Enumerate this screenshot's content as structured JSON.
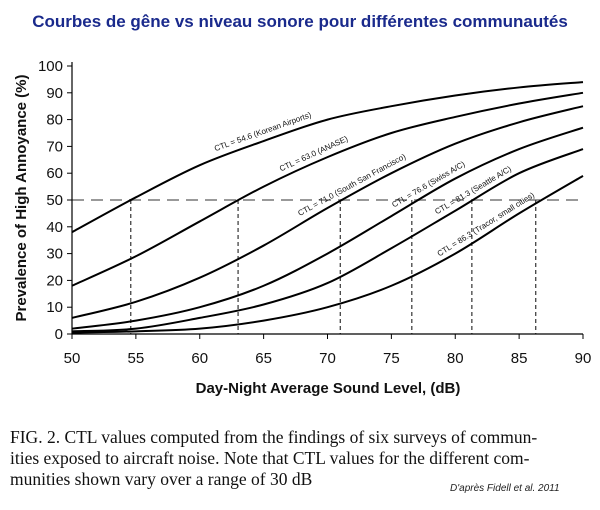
{
  "title": "Courbes de gêne vs niveau sonore pour différentes communautés",
  "caption": {
    "lines": [
      "FIG. 2.  CTL values computed from the findings of six surveys of commun-",
      "ities exposed to aircraft noise. Note that CTL values for the different com-",
      "munities shown vary over a range of 30 dB"
    ]
  },
  "source": "D'après Fidell et al. 2011",
  "chart_data": {
    "type": "line",
    "xlabel": "Day-Night Average Sound Level, (dB)",
    "ylabel": "Prevalence of High Annoyance (%)",
    "xlim": [
      50,
      90
    ],
    "ylim": [
      0,
      100
    ],
    "xticks": [
      50,
      55,
      60,
      65,
      70,
      75,
      80,
      85,
      90
    ],
    "yticks": [
      0,
      10,
      20,
      30,
      40,
      50,
      60,
      70,
      80,
      90,
      100
    ],
    "reference_line": {
      "y": 50,
      "style": "dashed"
    },
    "series": [
      {
        "name": "CTL = 54.6 (Korean Airports)",
        "ctl": 54.6,
        "x": [
          50,
          55,
          60,
          65,
          70,
          75,
          80,
          85,
          90
        ],
        "y": [
          38,
          51,
          63,
          72,
          80,
          85,
          89,
          92,
          94
        ]
      },
      {
        "name": "CTL = 63.0 (ANASE)",
        "ctl": 63.0,
        "x": [
          50,
          55,
          60,
          65,
          70,
          75,
          80,
          85,
          90
        ],
        "y": [
          18,
          29,
          42,
          55,
          66,
          75,
          81,
          86,
          90
        ]
      },
      {
        "name": "CTL = 71.0 (South San Francisco)",
        "ctl": 71.0,
        "x": [
          50,
          55,
          60,
          65,
          70,
          75,
          80,
          85,
          90
        ],
        "y": [
          6,
          12,
          21,
          33,
          47,
          60,
          71,
          79,
          85
        ]
      },
      {
        "name": "CTL = 76.6 (Swiss A/C)",
        "ctl": 76.6,
        "x": [
          50,
          55,
          60,
          65,
          70,
          75,
          80,
          85,
          90
        ],
        "y": [
          2,
          5,
          10,
          18,
          30,
          44,
          58,
          69,
          77
        ]
      },
      {
        "name": "CTL = 81.3 (Seattle A/C)",
        "ctl": 81.3,
        "x": [
          50,
          55,
          60,
          65,
          70,
          75,
          80,
          85,
          90
        ],
        "y": [
          1,
          2,
          6,
          11,
          19,
          32,
          46,
          60,
          69
        ]
      },
      {
        "name": "CTL = 86.3 (Tracor, small cities)",
        "ctl": 86.3,
        "x": [
          50,
          55,
          60,
          65,
          70,
          75,
          80,
          85,
          90
        ],
        "y": [
          0.5,
          1,
          2,
          5,
          10,
          18,
          30,
          45,
          59
        ]
      }
    ],
    "grid": false,
    "colors": {
      "curve": "#000000",
      "reference": "#999999",
      "drop": "#333333"
    }
  }
}
